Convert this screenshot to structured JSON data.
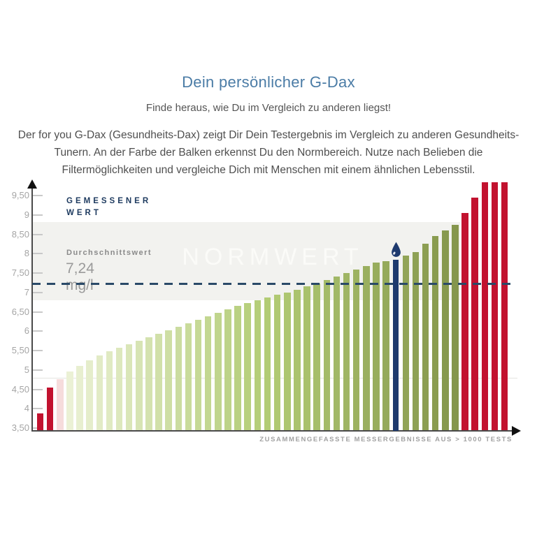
{
  "header": {
    "title": "Dein persönlicher G-Dax",
    "subtitle": "Finde heraus, wie Du im Vergleich zu anderen liegst!",
    "description": "Der for you G-Dax (Gesundheits-Dax) zeigt Dir Dein Testergebnis im Vergleich zu anderen Gesundheits-Tunern. An der Farbe der Balken erkennst Du den Normbereich. Nutze nach Belieben die Filtermöglichkeiten und vergleiche Dich mit Menschen mit einem ähnlichen Lebensstil."
  },
  "chart": {
    "y_axis_label_line1": "GEMESSENER",
    "y_axis_label_line2": "WERT",
    "average_label": "Durchschnittswert",
    "average_value_text": "7,24 mg/l",
    "norm_band_label": "NORMWERT",
    "x_axis_caption": "ZUSAMMENGEFASSTE MESSERGEBNISSE AUS > 1000 TESTS",
    "colors": {
      "title_blue": "#4b7ca6",
      "navy": "#1e3a6e",
      "dashed_line": "#2a4a68",
      "red": "#c2122f",
      "pale_pink": "#f6dcdc",
      "norm_band_grey": "#f2f2ef",
      "axis_grey": "#4a4a4a"
    }
  },
  "chart_data": {
    "type": "bar",
    "title": "Dein persönlicher G-Dax",
    "ylabel": "GEMESSENER WERT",
    "xlabel": "ZUSAMMENGEFASSTE MESSERGEBNISSE AUS > 1000 TESTS",
    "unit": "mg/l",
    "ylim": [
      3.43,
      9.9
    ],
    "yticks": [
      3.5,
      4,
      4.5,
      5,
      5.5,
      6,
      6.5,
      7,
      7.5,
      8,
      8.5,
      9,
      9.5
    ],
    "ytick_labels": [
      "3,50",
      "4",
      "4,50",
      "5",
      "5,50",
      "6",
      "6,50",
      "7",
      "7,50",
      "8",
      "8,50",
      "9",
      "9,50"
    ],
    "average_line": 7.24,
    "norm_band": [
      6.8,
      8.8
    ],
    "low_gridline": 4.8,
    "user_value": 7.85,
    "user_bar_index": 36,
    "grid": "off",
    "legend": "none",
    "bars": [
      {
        "value": 3.88,
        "color": "#c2122f"
      },
      {
        "value": 4.55,
        "color": "#c2122f"
      },
      {
        "value": 4.76,
        "color": "#f6dcdc"
      },
      {
        "value": 4.96,
        "color": "#ebf1d5"
      },
      {
        "value": 5.1,
        "color": "#e8efd0"
      },
      {
        "value": 5.25,
        "color": "#e5edcb"
      },
      {
        "value": 5.37,
        "color": "#e2ebc6"
      },
      {
        "value": 5.48,
        "color": "#e0eac2"
      },
      {
        "value": 5.57,
        "color": "#dde8bd"
      },
      {
        "value": 5.66,
        "color": "#dae6b8"
      },
      {
        "value": 5.75,
        "color": "#d7e4b4"
      },
      {
        "value": 5.84,
        "color": "#d4e2af"
      },
      {
        "value": 5.93,
        "color": "#d1e0a9"
      },
      {
        "value": 6.03,
        "color": "#cedea4"
      },
      {
        "value": 6.12,
        "color": "#cbdca0"
      },
      {
        "value": 6.21,
        "color": "#c9db9b"
      },
      {
        "value": 6.3,
        "color": "#c6d996"
      },
      {
        "value": 6.39,
        "color": "#c3d791"
      },
      {
        "value": 6.47,
        "color": "#c0d58d"
      },
      {
        "value": 6.56,
        "color": "#bdd388"
      },
      {
        "value": 6.65,
        "color": "#bad183"
      },
      {
        "value": 6.73,
        "color": "#b8d07e"
      },
      {
        "value": 6.8,
        "color": "#b5ce79"
      },
      {
        "value": 6.87,
        "color": "#b2cc74"
      },
      {
        "value": 6.94,
        "color": "#b0c972"
      },
      {
        "value": 7.0,
        "color": "#adc670"
      },
      {
        "value": 7.07,
        "color": "#abc36e"
      },
      {
        "value": 7.16,
        "color": "#a9c16c"
      },
      {
        "value": 7.24,
        "color": "#a6be6a"
      },
      {
        "value": 7.33,
        "color": "#a4bb68"
      },
      {
        "value": 7.42,
        "color": "#a1b866"
      },
      {
        "value": 7.51,
        "color": "#9fb564"
      },
      {
        "value": 7.6,
        "color": "#9db261"
      },
      {
        "value": 7.69,
        "color": "#9aaf5f"
      },
      {
        "value": 7.77,
        "color": "#98ad5d"
      },
      {
        "value": 7.81,
        "color": "#95aa5b"
      },
      {
        "value": 7.85,
        "color": "#1e3a6e",
        "user": true
      },
      {
        "value": 7.95,
        "color": "#91a457"
      },
      {
        "value": 8.05,
        "color": "#8ea155"
      },
      {
        "value": 8.25,
        "color": "#8c9e52"
      },
      {
        "value": 8.45,
        "color": "#8a9c50"
      },
      {
        "value": 8.6,
        "color": "#87994e"
      },
      {
        "value": 8.75,
        "color": "#85964c"
      },
      {
        "value": 9.05,
        "color": "#c2122f"
      },
      {
        "value": 9.45,
        "color": "#c2122f"
      },
      {
        "value": 9.85,
        "color": "#c2122f"
      },
      {
        "value": 9.85,
        "color": "#c2122f"
      },
      {
        "value": 9.85,
        "color": "#c2122f"
      }
    ]
  }
}
